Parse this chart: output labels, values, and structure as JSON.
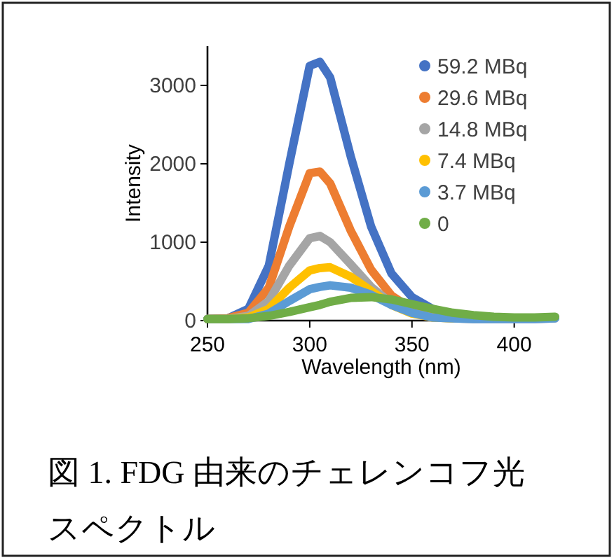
{
  "chart_data": {
    "type": "line",
    "xlabel": "Wavelength (nm)",
    "ylabel": "Intensity",
    "xlim": [
      250,
      420
    ],
    "ylim": [
      0,
      3500
    ],
    "xticks": [
      250,
      300,
      350,
      400
    ],
    "yticks": [
      0,
      1000,
      2000,
      3000
    ],
    "legend": "top right",
    "x": [
      250,
      260,
      270,
      280,
      290,
      300,
      305,
      310,
      320,
      330,
      340,
      350,
      360,
      370,
      380,
      390,
      400,
      410,
      420
    ],
    "series": [
      {
        "name": "59.2 MBq",
        "color": "#4472c4",
        "values": [
          20,
          30,
          150,
          700,
          2000,
          3250,
          3300,
          3100,
          2100,
          1200,
          600,
          300,
          150,
          70,
          40,
          30,
          30,
          30,
          40
        ]
      },
      {
        "name": "29.6 MBq",
        "color": "#ed7d31",
        "values": [
          20,
          30,
          100,
          420,
          1200,
          1880,
          1900,
          1750,
          1150,
          650,
          320,
          150,
          60,
          null,
          null,
          null,
          null,
          null,
          null
        ]
      },
      {
        "name": "14.8 MBq",
        "color": "#a5a5a5",
        "values": [
          20,
          20,
          60,
          250,
          700,
          1050,
          1080,
          1000,
          720,
          430,
          220,
          100,
          40,
          30,
          20,
          20,
          20,
          20,
          30
        ]
      },
      {
        "name": "7.4 MBq",
        "color": "#ffc000",
        "values": [
          20,
          20,
          40,
          150,
          420,
          640,
          670,
          680,
          560,
          380,
          200,
          90,
          40,
          30,
          null,
          null,
          null,
          null,
          null
        ]
      },
      {
        "name": "3.7 MBq",
        "color": "#5b9bd5",
        "values": [
          20,
          20,
          20,
          90,
          250,
          400,
          430,
          450,
          420,
          330,
          200,
          100,
          40,
          30,
          20,
          20,
          20,
          20,
          30
        ]
      },
      {
        "name": "0",
        "color": "#70ad47",
        "values": [
          20,
          20,
          30,
          60,
          110,
          170,
          200,
          240,
          290,
          300,
          270,
          210,
          150,
          100,
          70,
          50,
          40,
          40,
          50
        ]
      }
    ],
    "annotations": [
      "図 1. FDG 由来のチェレンコフ光スペクトル"
    ]
  }
}
